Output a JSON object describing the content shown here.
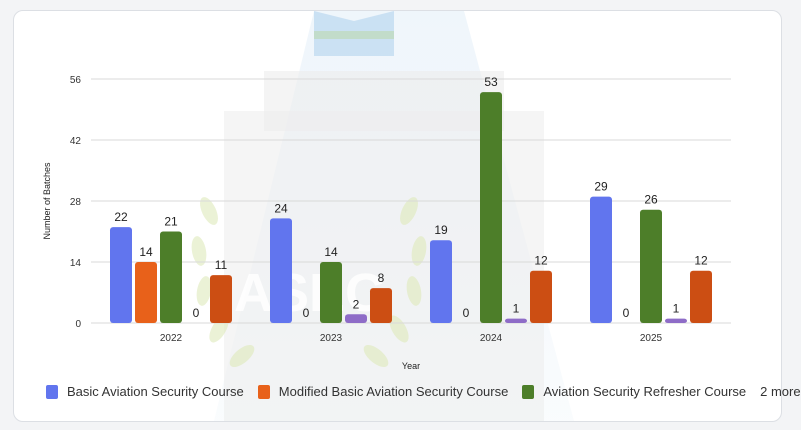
{
  "watermark_text": "ASEC",
  "chart_data": {
    "type": "bar",
    "categories": [
      "2022",
      "2023",
      "2024",
      "2025"
    ],
    "xlabel": "Year",
    "ylabel": "Number of Batches",
    "ylim": [
      0,
      56
    ],
    "yticks": [
      "0",
      "14",
      "28",
      "42",
      "56"
    ],
    "grid": true,
    "legend_position": "bottom",
    "series": [
      {
        "name": "Basic Aviation Security Course",
        "color": "#6175ee",
        "values": [
          22,
          24,
          19,
          29
        ]
      },
      {
        "name": "Modified Basic Aviation Security Course",
        "color": "#e8611a",
        "values": [
          14,
          0,
          0,
          0
        ]
      },
      {
        "name": "Aviation Security Refresher Course",
        "color": "#4d7e29",
        "values": [
          21,
          14,
          53,
          26
        ]
      },
      {
        "name": "",
        "color": "#8e6cc7",
        "values": [
          0,
          2,
          1,
          1
        ]
      },
      {
        "name": "",
        "color": "#cc4e13",
        "values": [
          11,
          8,
          12,
          12
        ]
      }
    ],
    "legend": {
      "items": [
        "Basic Aviation Security Course",
        "Modified Basic Aviation Security Course",
        "Aviation Security Refresher Course"
      ],
      "more_label": "2 more"
    }
  }
}
